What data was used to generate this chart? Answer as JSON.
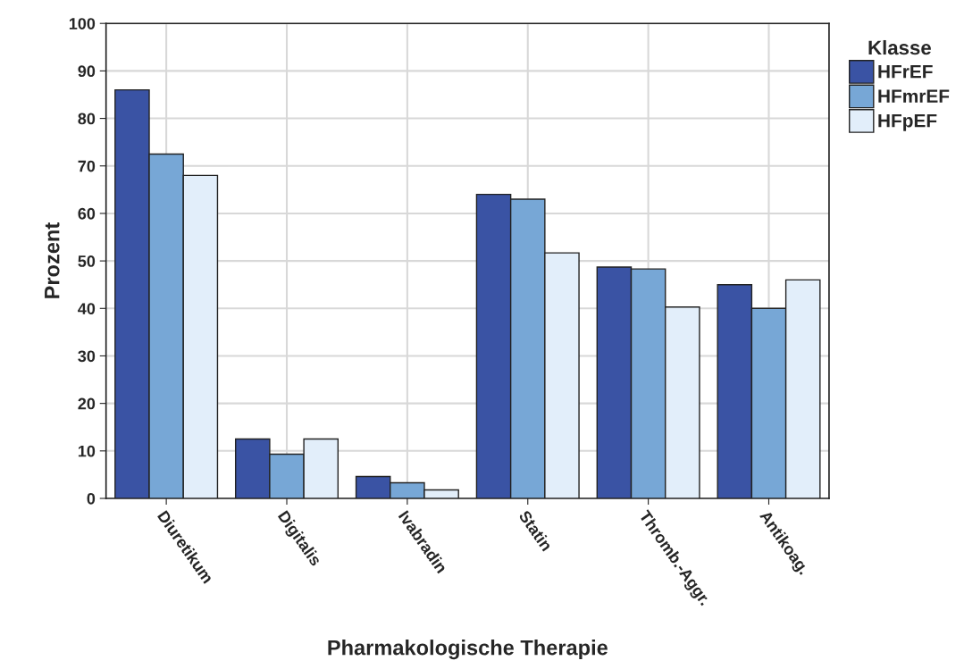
{
  "chart_data": {
    "type": "bar",
    "xlabel": "Pharmakologische Therapie",
    "ylabel": "Prozent",
    "legend_title": "Klasse",
    "categories": [
      "Diuretikum",
      "Digitalis",
      "Ivabradin",
      "Statin",
      "Thromb.-Aggr.",
      "Antikoag."
    ],
    "series": [
      {
        "name": "HFrEF",
        "color": "#3a53a4",
        "values": [
          86,
          12.5,
          4.6,
          64,
          48.7,
          45
        ]
      },
      {
        "name": "HFmrEF",
        "color": "#77a7d6",
        "values": [
          72.5,
          9.3,
          3.3,
          63,
          48.3,
          40
        ]
      },
      {
        "name": "HFpEF",
        "color": "#e2eefa",
        "values": [
          68,
          12.5,
          1.8,
          51.7,
          40.3,
          46
        ]
      }
    ],
    "ylim": [
      0,
      100
    ],
    "yticks": [
      0,
      10,
      20,
      30,
      40,
      50,
      60,
      70,
      80,
      90,
      100
    ],
    "grid": true,
    "legend": "right"
  }
}
